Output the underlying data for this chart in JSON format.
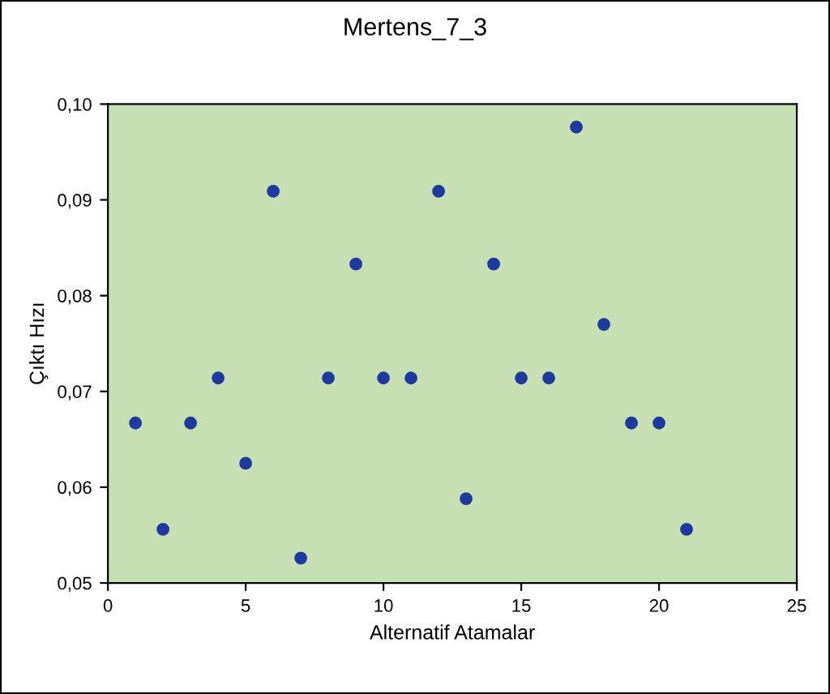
{
  "chart_data": {
    "type": "scatter",
    "title": "Mertens_7_3",
    "xlabel": "Alternatif Atamalar",
    "ylabel": "Çıktı Hızı",
    "x": [
      1,
      2,
      3,
      4,
      5,
      6,
      7,
      8,
      9,
      10,
      11,
      12,
      13,
      14,
      15,
      16,
      17,
      18,
      19,
      20,
      21
    ],
    "series": [
      {
        "color": "#1f3a9e",
        "values": [
          0.0667,
          0.0556,
          0.0667,
          0.0714,
          0.0625,
          0.0909,
          0.0526,
          0.0714,
          0.0833,
          0.0714,
          0.0714,
          0.0909,
          0.0588,
          0.0833,
          0.0714,
          0.0714,
          0.0976,
          0.077,
          0.0667,
          0.0667,
          0.0556
        ]
      }
    ],
    "xlim": [
      0,
      25
    ],
    "xticks": [
      0,
      5,
      10,
      15,
      20,
      25
    ],
    "ylim": [
      0.05,
      0.1
    ],
    "yticks": [
      {
        "value": 0.05,
        "label": "0,05"
      },
      {
        "value": 0.06,
        "label": "0,06"
      },
      {
        "value": 0.07,
        "label": "0,07"
      },
      {
        "value": 0.08,
        "label": "0,08"
      },
      {
        "value": 0.09,
        "label": "0,09"
      },
      {
        "value": 0.1,
        "label": "0,10"
      }
    ],
    "grid": false,
    "legend": false,
    "marker": "circle"
  }
}
